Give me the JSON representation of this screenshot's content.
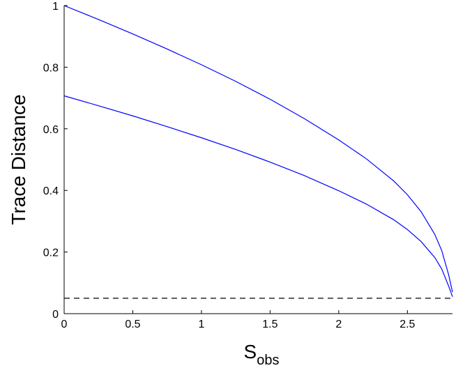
{
  "chart_data": {
    "type": "line",
    "title": "",
    "xlabel": "S",
    "xlabel_subscript": "obs",
    "ylabel": "Trace Distance",
    "xlim": [
      0,
      2.8284
    ],
    "ylim": [
      0,
      1
    ],
    "xticks": [
      0,
      0.5,
      1,
      1.5,
      2,
      2.5
    ],
    "xtick_labels": [
      "0",
      "0.5",
      "1",
      "1.5",
      "2",
      "2.5"
    ],
    "yticks": [
      0,
      0.2,
      0.4,
      0.6,
      0.8,
      1
    ],
    "ytick_labels": [
      "0",
      "0.2",
      "0.4",
      "0.6",
      "0.8",
      "1"
    ],
    "grid": false,
    "series": [
      {
        "color": "#0000ff",
        "style": "solid",
        "x": [
          0,
          0.25,
          0.5,
          0.75,
          1.0,
          1.25,
          1.5,
          1.75,
          2.0,
          2.2,
          2.4,
          2.5,
          2.6,
          2.7,
          2.75,
          2.8,
          2.8284
        ],
        "y": [
          1.0,
          0.955,
          0.908,
          0.859,
          0.808,
          0.754,
          0.696,
          0.633,
          0.564,
          0.503,
          0.431,
          0.386,
          0.331,
          0.257,
          0.205,
          0.127,
          0.07
        ]
      },
      {
        "color": "#0000ff",
        "style": "solid",
        "x": [
          0,
          0.25,
          0.5,
          0.75,
          1.0,
          1.25,
          1.5,
          1.75,
          2.0,
          2.2,
          2.4,
          2.5,
          2.6,
          2.7,
          2.75,
          2.8,
          2.8284
        ],
        "y": [
          0.707,
          0.675,
          0.642,
          0.607,
          0.571,
          0.533,
          0.492,
          0.448,
          0.399,
          0.356,
          0.305,
          0.273,
          0.234,
          0.182,
          0.145,
          0.09,
          0.055
        ]
      },
      {
        "color": "#000000",
        "style": "dashed",
        "x": [
          0,
          2.8284
        ],
        "y": [
          0.05,
          0.05
        ]
      }
    ]
  }
}
